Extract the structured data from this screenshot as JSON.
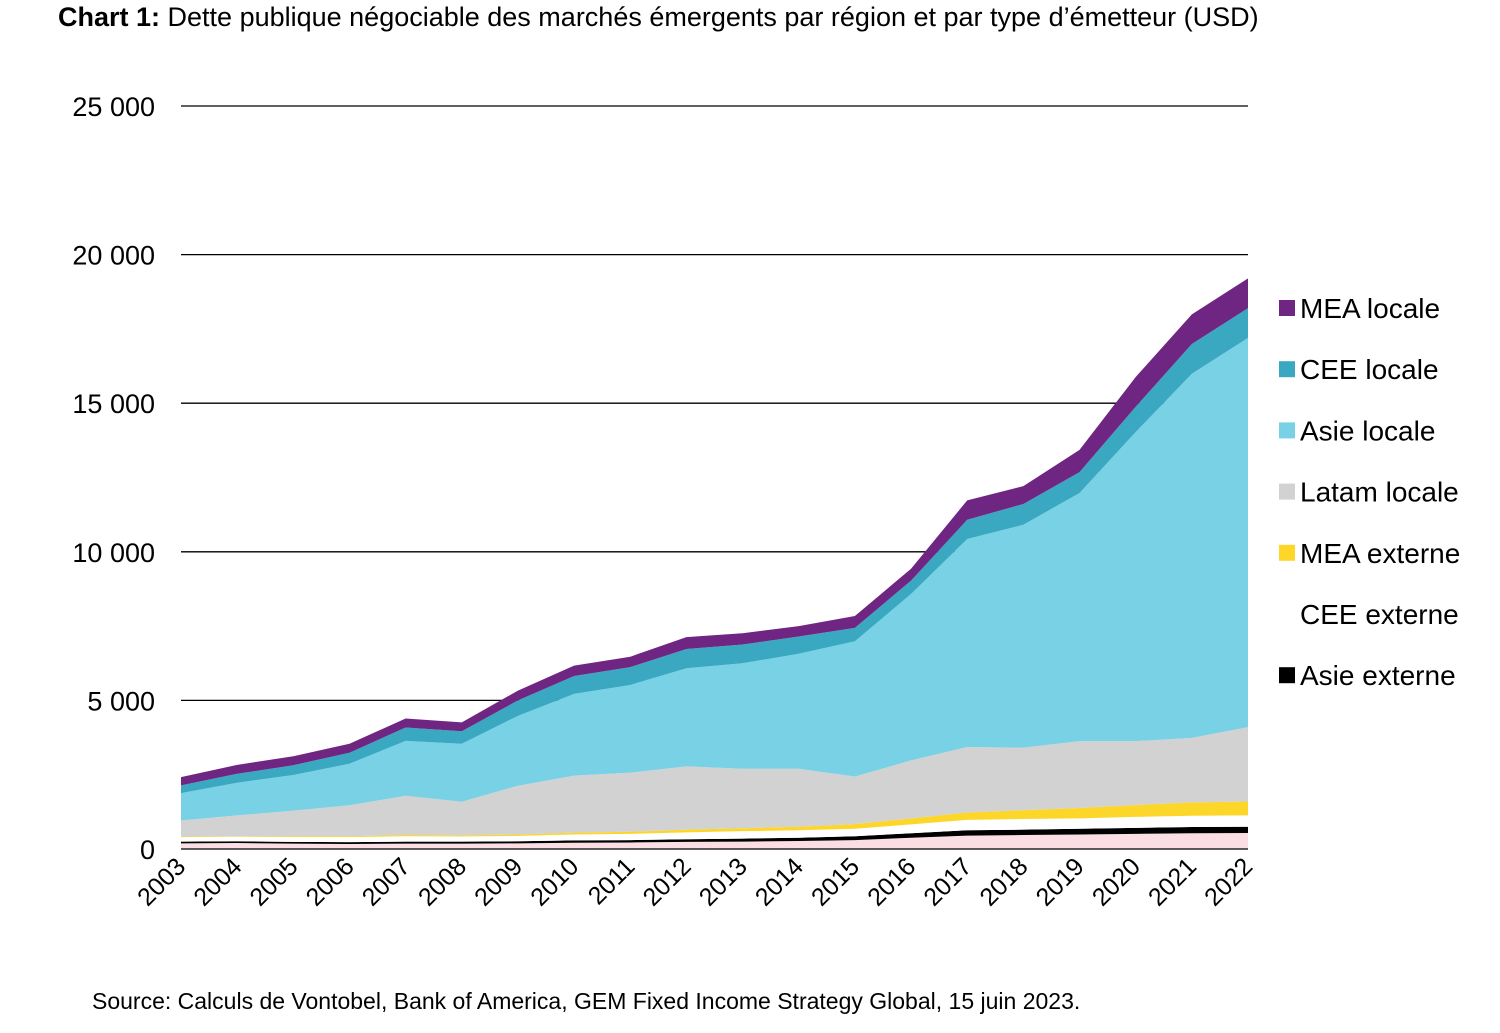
{
  "title_prefix": "Chart 1:",
  "title_text": "Dette publique négociable des marchés émergents par région et par type d’émetteur (USD)",
  "source": "Source: Calculs de Vontobel, Bank of America, GEM Fixed Income Strategy Global, 15 juin 2023.",
  "chart_data": {
    "type": "area",
    "stacked": true,
    "ylim": [
      0,
      25000
    ],
    "yticks": [
      0,
      5000,
      10000,
      15000,
      20000,
      25000
    ],
    "ytick_labels": [
      "0",
      "5 000",
      "10 000",
      "15 000",
      "20 000",
      "25 000"
    ],
    "grid": true,
    "legend_position": "right",
    "categories": [
      "2003",
      "2004",
      "2005",
      "2006",
      "2007",
      "2008",
      "2009",
      "2010",
      "2011",
      "2012",
      "2013",
      "2014",
      "2015",
      "2016",
      "2017",
      "2018",
      "2019",
      "2020",
      "2021",
      "2022"
    ],
    "series": [
      {
        "name": "",
        "color": "#fbdde4",
        "values": [
          190,
          200,
          180,
          170,
          180,
          180,
          190,
          210,
          220,
          240,
          250,
          270,
          300,
          380,
          450,
          470,
          490,
          510,
          530,
          540
        ]
      },
      {
        "name": "Asie externe",
        "color": "#000000",
        "values": [
          60,
          60,
          60,
          60,
          70,
          70,
          70,
          80,
          80,
          90,
          100,
          110,
          130,
          150,
          180,
          180,
          190,
          200,
          210,
          210
        ]
      },
      {
        "name": "CEE externe",
        "color": "#ffffff",
        "values": [
          150,
          150,
          160,
          170,
          180,
          170,
          180,
          200,
          210,
          230,
          250,
          250,
          250,
          300,
          350,
          360,
          350,
          370,
          380,
          380
        ]
      },
      {
        "name": "MEA externe",
        "color": "#fcd72a",
        "values": [
          20,
          20,
          30,
          30,
          40,
          40,
          50,
          60,
          70,
          90,
          100,
          120,
          160,
          200,
          250,
          300,
          350,
          400,
          450,
          470
        ]
      },
      {
        "name": "Latam locale",
        "color": "#d2d2d2",
        "values": [
          540,
          700,
          860,
          1040,
          1320,
          1130,
          1640,
          1920,
          1990,
          2130,
          2000,
          1950,
          1600,
          1950,
          2200,
          2100,
          2250,
          2150,
          2170,
          2500
        ]
      },
      {
        "name": "Asie locale",
        "color": "#78d1e4",
        "values": [
          920,
          1100,
          1200,
          1400,
          1850,
          1950,
          2350,
          2750,
          2950,
          3300,
          3550,
          3870,
          4550,
          5600,
          7000,
          7500,
          8350,
          10400,
          12250,
          13100
        ]
      },
      {
        "name": "CEE locale",
        "color": "#3aa8c0",
        "values": [
          260,
          300,
          330,
          370,
          450,
          420,
          520,
          600,
          600,
          650,
          630,
          580,
          450,
          450,
          650,
          700,
          700,
          850,
          1000,
          1000
        ]
      },
      {
        "name": "MEA locale",
        "color": "#6f2582",
        "values": [
          280,
          300,
          300,
          300,
          300,
          300,
          330,
          350,
          350,
          400,
          380,
          350,
          400,
          400,
          650,
          600,
          750,
          1000,
          1000,
          1000
        ]
      }
    ],
    "legend": [
      {
        "name": "MEA locale",
        "color": "#6f2582"
      },
      {
        "name": "CEE locale",
        "color": "#3aa8c0"
      },
      {
        "name": "Asie locale",
        "color": "#78d1e4"
      },
      {
        "name": "Latam locale",
        "color": "#d2d2d2"
      },
      {
        "name": "MEA externe",
        "color": "#fcd72a"
      },
      {
        "name": "CEE externe",
        "color": "#ffffff"
      },
      {
        "name": "Asie externe",
        "color": "#000000"
      }
    ]
  }
}
